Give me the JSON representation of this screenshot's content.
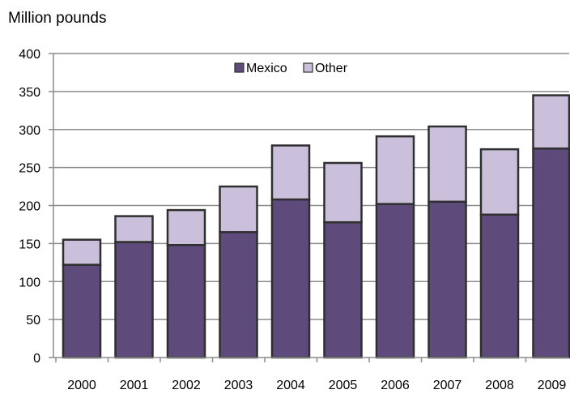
{
  "chart_data": {
    "type": "bar",
    "stacked": true,
    "title": "",
    "ylabel": "Million pounds",
    "xlabel": "",
    "categories": [
      "2000",
      "2001",
      "2002",
      "2003",
      "2004",
      "2005",
      "2006",
      "2007",
      "2008",
      "2009"
    ],
    "series": [
      {
        "name": "Mexico",
        "color": "#5f4b7b",
        "values": [
          122,
          152,
          148,
          165,
          208,
          178,
          202,
          205,
          188,
          275
        ]
      },
      {
        "name": "Other",
        "color": "#cbc0dc",
        "values": [
          33,
          34,
          46,
          60,
          71,
          78,
          89,
          99,
          86,
          70
        ]
      }
    ],
    "ylim": [
      0,
      400
    ],
    "yticks": [
      "0",
      "50",
      "100",
      "150",
      "200",
      "250",
      "300",
      "350",
      "400"
    ],
    "grid": true,
    "legend": "top-center"
  }
}
